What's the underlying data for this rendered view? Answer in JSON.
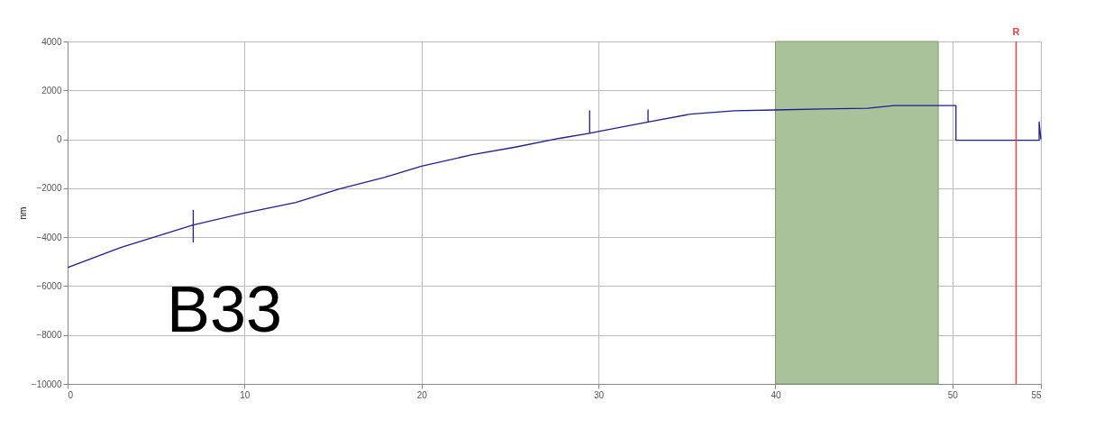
{
  "chart_data": {
    "type": "line",
    "ylabel": "nm",
    "xlim": [
      0,
      55
    ],
    "xticks": [
      0,
      10,
      20,
      30,
      40,
      50,
      55
    ],
    "ylim": [
      -10000,
      4000
    ],
    "yticks": [
      -10000,
      -8000,
      -6000,
      -4000,
      -2000,
      0,
      2000,
      4000
    ],
    "grid": true,
    "marker": "none",
    "line_style": "solid",
    "series": [
      {
        "color": "#1f1f8f",
        "x": [
          0,
          3.0,
          5.5,
          7.1,
          7.1,
          7.1,
          7.1,
          10,
          12.9,
          15.4,
          17.9,
          20,
          22.8,
          25.3,
          27.8,
          29.5,
          29.5,
          29.5,
          30,
          32.8,
          32.8,
          32.8,
          35.2,
          37.7,
          40,
          42.7,
          45.2,
          46.7,
          49.2,
          49.9,
          50.2,
          50.2,
          52,
          54.9,
          54.9,
          55
        ],
        "values": [
          -5240,
          -4420,
          -3860,
          -3500,
          -2900,
          -4200,
          -3500,
          -3010,
          -2580,
          -2020,
          -1560,
          -1100,
          -640,
          -320,
          40,
          250,
          1170,
          250,
          320,
          710,
          1200,
          710,
          1030,
          1170,
          1200,
          1240,
          1270,
          1380,
          1380,
          1380,
          1380,
          -40,
          -40,
          -40,
          710,
          0
        ]
      }
    ],
    "ref_lines": [
      {
        "axis": "x",
        "value": 53.6,
        "label": "R",
        "color": "#f04040"
      }
    ],
    "bands": [
      {
        "axis": "x",
        "from": 40,
        "to": 49.2,
        "color": "#a9c29a"
      }
    ],
    "annotations": [
      "B33"
    ]
  }
}
